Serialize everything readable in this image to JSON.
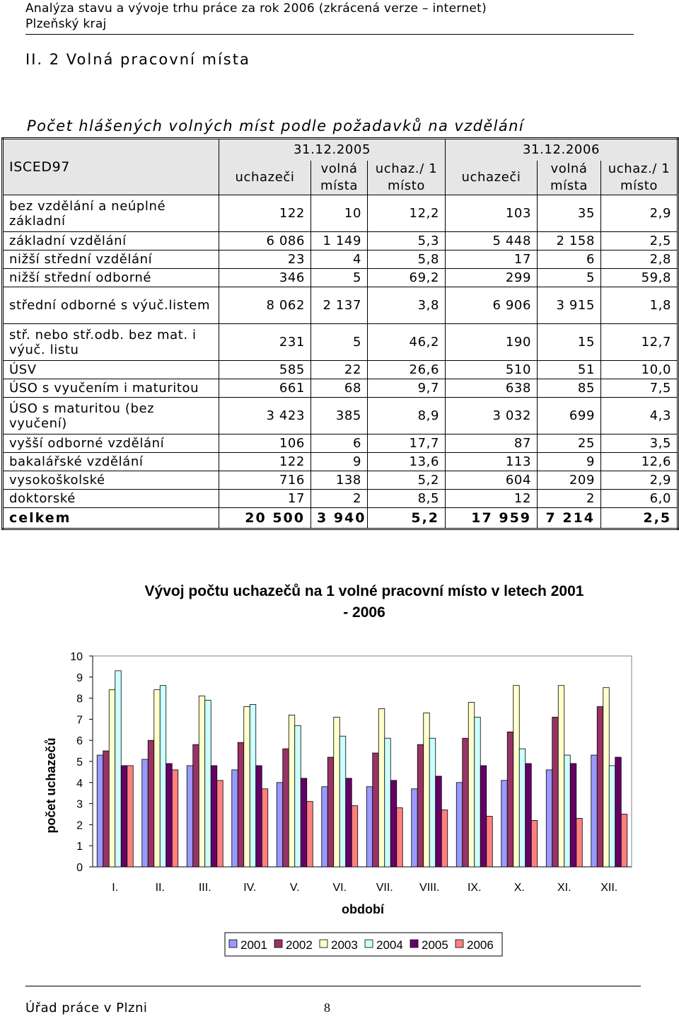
{
  "header": {
    "line1": "Analýza stavu a vývoje trhu práce za rok 2006 (zkrácená verze – internet)",
    "line2": "Plzeňský kraj"
  },
  "section_title": "II. 2 Volná pracovní místa",
  "table_title": "Počet hlášených volných míst podle požadavků na vzdělání",
  "table": {
    "corner": "ISCED97",
    "date1": "31.12.2005",
    "date2": "31.12.2006",
    "col_uchazeci": "uchazeči",
    "col_volna": "volná místa",
    "col_uchaz": "uchaz./ 1 místo",
    "rows": [
      {
        "label": "bez vzdělání a neúplné základní",
        "v": [
          "122",
          "10",
          "12,2",
          "103",
          "35",
          "2,9"
        ]
      },
      {
        "label": "základní vzdělání",
        "v": [
          "6 086",
          "1 149",
          "5,3",
          "5 448",
          "2 158",
          "2,5"
        ]
      },
      {
        "label": "nižší střední vzdělání",
        "v": [
          "23",
          "4",
          "5,8",
          "17",
          "6",
          "2,8"
        ]
      },
      {
        "label": "nižší střední odborné",
        "v": [
          "346",
          "5",
          "69,2",
          "299",
          "5",
          "59,8"
        ]
      },
      {
        "label": "střední odborné s výuč.listem",
        "v": [
          "8 062",
          "2 137",
          "3,8",
          "6 906",
          "3 915",
          "1,8"
        ]
      },
      {
        "label": "stř. nebo stř.odb. bez mat. i výuč. listu",
        "v": [
          "231",
          "5",
          "46,2",
          "190",
          "15",
          "12,7"
        ]
      },
      {
        "label": "ÚSV",
        "v": [
          "585",
          "22",
          "26,6",
          "510",
          "51",
          "10,0"
        ]
      },
      {
        "label": "ÚSO s vyučením i maturitou",
        "v": [
          "661",
          "68",
          "9,7",
          "638",
          "85",
          "7,5"
        ]
      },
      {
        "label": "ÚSO s maturitou (bez vyučení)",
        "v": [
          "3 423",
          "385",
          "8,9",
          "3 032",
          "699",
          "4,3"
        ]
      },
      {
        "label": "vyšší odborné vzdělání",
        "v": [
          "106",
          "6",
          "17,7",
          "87",
          "25",
          "3,5"
        ]
      },
      {
        "label": "bakalářské vzdělání",
        "v": [
          "122",
          "9",
          "13,6",
          "113",
          "9",
          "12,6"
        ]
      },
      {
        "label": "vysokoškolské",
        "v": [
          "716",
          "138",
          "5,2",
          "604",
          "209",
          "2,9"
        ]
      },
      {
        "label": "doktorské",
        "v": [
          "17",
          "2",
          "8,5",
          "12",
          "2",
          "6,0"
        ]
      }
    ],
    "total": {
      "label": "celkem",
      "v": [
        "20 500",
        "3 940",
        "5,2",
        "17 959",
        "7 214",
        "2,5"
      ]
    }
  },
  "chart_data": {
    "type": "bar",
    "title": "Vývoj počtu uchazečů na 1 volné pracovní místo v letech 2001 - 2006",
    "xlabel": "období",
    "ylabel": "počet uchazečů",
    "ylim": [
      0,
      10
    ],
    "yticks": [
      "0",
      "1",
      "2",
      "3",
      "4",
      "5",
      "6",
      "7",
      "8",
      "9",
      "10"
    ],
    "categories": [
      "I.",
      "II.",
      "III.",
      "IV.",
      "V.",
      "VI.",
      "VII.",
      "VIII.",
      "IX.",
      "X.",
      "XI.",
      "XII."
    ],
    "legend_position": "bottom",
    "series": [
      {
        "name": "2001",
        "color": "#9999ff",
        "values": [
          5.3,
          5.1,
          4.8,
          4.6,
          4.0,
          3.8,
          3.8,
          3.7,
          4.0,
          4.1,
          4.6,
          5.3
        ]
      },
      {
        "name": "2002",
        "color": "#993366",
        "values": [
          5.5,
          6.0,
          5.8,
          5.9,
          5.6,
          5.2,
          5.4,
          5.8,
          6.1,
          6.4,
          7.1,
          7.6
        ]
      },
      {
        "name": "2003",
        "color": "#ffffcc",
        "values": [
          8.4,
          8.4,
          8.1,
          7.6,
          7.2,
          7.1,
          7.5,
          7.3,
          7.8,
          8.6,
          8.6,
          8.5
        ]
      },
      {
        "name": "2004",
        "color": "#ccffff",
        "values": [
          9.3,
          8.6,
          7.9,
          7.7,
          6.7,
          6.2,
          6.1,
          6.1,
          7.1,
          5.6,
          5.3,
          4.8
        ]
      },
      {
        "name": "2005",
        "color": "#660066",
        "values": [
          4.8,
          4.9,
          4.8,
          4.8,
          4.2,
          4.2,
          4.1,
          4.3,
          4.8,
          4.9,
          4.9,
          5.2
        ]
      },
      {
        "name": "2006",
        "color": "#ff8080",
        "values": [
          4.8,
          4.6,
          4.1,
          3.7,
          3.1,
          2.9,
          2.8,
          2.7,
          2.4,
          2.2,
          2.3,
          2.5
        ]
      }
    ]
  },
  "footer": {
    "office": "Úřad práce v Plzni",
    "page": "8"
  }
}
